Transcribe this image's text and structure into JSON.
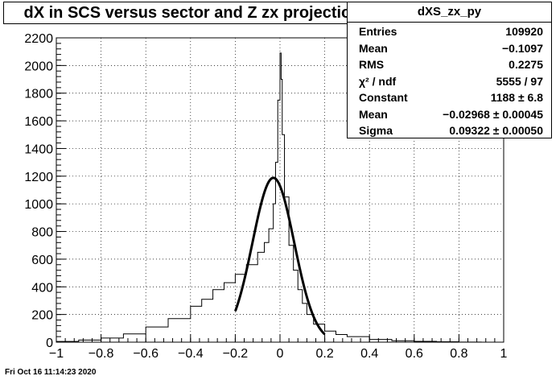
{
  "chart_data": {
    "type": "histogram",
    "title": "dX in SCS versus sector and Z zx projection",
    "xlim": [
      -1,
      1
    ],
    "ylim": [
      0,
      2200
    ],
    "x_ticks": [
      "−1",
      "−0.8",
      "−0.6",
      "−0.4",
      "−0.2",
      "0",
      "0.2",
      "0.4",
      "0.6",
      "0.8",
      "1"
    ],
    "x_tick_values": [
      -1,
      -0.8,
      -0.6,
      -0.4,
      -0.2,
      0,
      0.2,
      0.4,
      0.6,
      0.8,
      1
    ],
    "y_ticks": [
      "0",
      "200",
      "400",
      "600",
      "800",
      "1000",
      "1200",
      "1400",
      "1600",
      "1800",
      "2000",
      "2200"
    ],
    "y_tick_values": [
      0,
      200,
      400,
      600,
      800,
      1000,
      1200,
      1400,
      1600,
      1800,
      2000,
      2200
    ],
    "grid": true,
    "histogram": {
      "name": "dXS_zx_py",
      "points": [
        [
          -1.0,
          5
        ],
        [
          -0.9,
          15
        ],
        [
          -0.8,
          30
        ],
        [
          -0.7,
          60
        ],
        [
          -0.6,
          110
        ],
        [
          -0.5,
          170
        ],
        [
          -0.4,
          260
        ],
        [
          -0.35,
          310
        ],
        [
          -0.3,
          380
        ],
        [
          -0.25,
          430
        ],
        [
          -0.2,
          490
        ],
        [
          -0.15,
          560
        ],
        [
          -0.1,
          650
        ],
        [
          -0.07,
          720
        ],
        [
          -0.05,
          820
        ],
        [
          -0.03,
          1000
        ],
        [
          -0.02,
          1300
        ],
        [
          -0.01,
          1750
        ],
        [
          0.0,
          2090
        ],
        [
          0.005,
          1900
        ],
        [
          0.01,
          1500
        ],
        [
          0.02,
          1050
        ],
        [
          0.04,
          700
        ],
        [
          0.06,
          520
        ],
        [
          0.08,
          380
        ],
        [
          0.1,
          280
        ],
        [
          0.12,
          200
        ],
        [
          0.15,
          130
        ],
        [
          0.2,
          80
        ],
        [
          0.25,
          55
        ],
        [
          0.3,
          40
        ],
        [
          0.4,
          20
        ],
        [
          0.5,
          10
        ],
        [
          0.6,
          6
        ],
        [
          0.7,
          3
        ],
        [
          0.8,
          1
        ],
        [
          0.9,
          0
        ],
        [
          1.0,
          0
        ]
      ]
    },
    "fit": {
      "type": "gaussian",
      "constant": 1188,
      "mean": -0.02968,
      "sigma": 0.09322,
      "range": [
        -0.2,
        0.2
      ]
    }
  },
  "stats_box": {
    "name": "dXS_zx_py",
    "rows": [
      {
        "label": "Entries",
        "value": "109920"
      },
      {
        "label": "Mean",
        "value": "−0.1097"
      },
      {
        "label": "RMS",
        "value": "0.2275"
      },
      {
        "label": "χ² / ndf",
        "value": "5555 / 97"
      },
      {
        "label": "Constant",
        "value": "1188  ± 6.8"
      },
      {
        "label": "Mean",
        "value": "−0.02968  ± 0.00045"
      },
      {
        "label": "Sigma",
        "value": "0.09322  ± 0.00050"
      }
    ]
  },
  "timestamp": "Fri Oct 16 11:14:23 2020"
}
